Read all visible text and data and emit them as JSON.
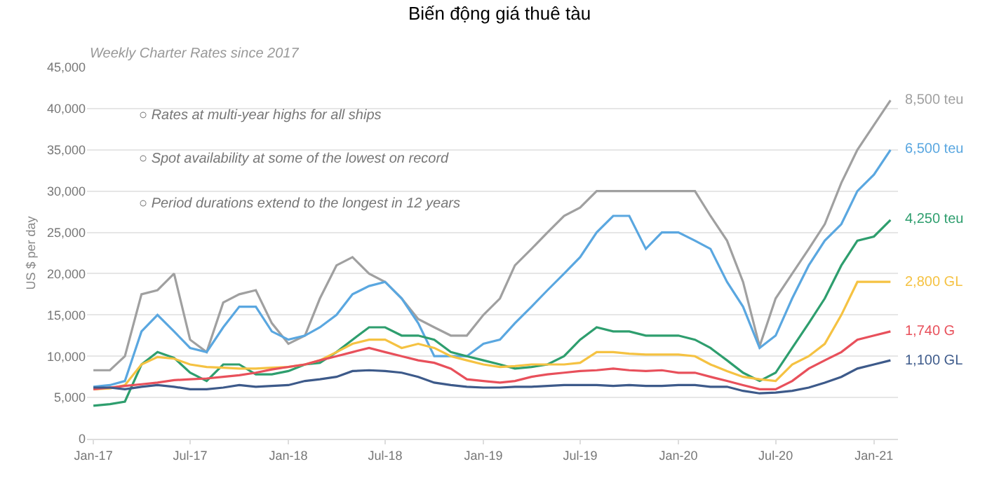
{
  "chart_data": {
    "type": "line",
    "title": "Biến động giá thuê tàu",
    "subtitle": "Weekly Charter Rates since 2017",
    "ylabel": "US $ per day",
    "annotations": [
      "○ Rates at multi-year highs for all ships",
      "○ Spot availability at some of the lowest on record",
      "○ Period durations extend to the longest in 12 years"
    ],
    "x": [
      "2017-01",
      "2017-02",
      "2017-03",
      "2017-04",
      "2017-05",
      "2017-06",
      "2017-07",
      "2017-08",
      "2017-09",
      "2017-10",
      "2017-11",
      "2017-12",
      "2018-01",
      "2018-02",
      "2018-03",
      "2018-04",
      "2018-05",
      "2018-06",
      "2018-07",
      "2018-08",
      "2018-09",
      "2018-10",
      "2018-11",
      "2018-12",
      "2019-01",
      "2019-02",
      "2019-03",
      "2019-04",
      "2019-05",
      "2019-06",
      "2019-07",
      "2019-08",
      "2019-09",
      "2019-10",
      "2019-11",
      "2019-12",
      "2020-01",
      "2020-02",
      "2020-03",
      "2020-04",
      "2020-05",
      "2020-06",
      "2020-07",
      "2020-08",
      "2020-09",
      "2020-10",
      "2020-11",
      "2020-12",
      "2021-01",
      "2021-02"
    ],
    "series": [
      {
        "name": "8,500 teu",
        "color": "#a0a0a0",
        "values": [
          8300,
          8300,
          10000,
          17500,
          18000,
          20000,
          12000,
          10500,
          16500,
          17500,
          18000,
          14000,
          11500,
          12500,
          17000,
          21000,
          22000,
          20000,
          19000,
          17000,
          14500,
          13500,
          12500,
          12500,
          15000,
          17000,
          21000,
          23000,
          25000,
          27000,
          28000,
          30000,
          30000,
          30000,
          30000,
          30000,
          30000,
          30000,
          27000,
          24000,
          19000,
          11200,
          17000,
          20000,
          23000,
          26000,
          31000,
          35000,
          38000,
          41000
        ]
      },
      {
        "name": "6,500 teu",
        "color": "#5aa7e0",
        "values": [
          6300,
          6500,
          7000,
          13000,
          15000,
          13000,
          11000,
          10500,
          13500,
          16000,
          16000,
          13000,
          12000,
          12500,
          13500,
          15000,
          17500,
          18500,
          19000,
          17000,
          14000,
          10000,
          10000,
          10000,
          11500,
          12000,
          14000,
          16000,
          18000,
          20000,
          22000,
          25000,
          27000,
          27000,
          23000,
          25000,
          25000,
          24000,
          23000,
          19000,
          16000,
          11000,
          12500,
          17000,
          21000,
          24000,
          26000,
          30000,
          32000,
          35000
        ]
      },
      {
        "name": "4,250 teu",
        "color": "#2e9e6e",
        "values": [
          4000,
          4200,
          4500,
          9000,
          10500,
          9800,
          8000,
          7000,
          9000,
          9000,
          7800,
          7800,
          8200,
          9000,
          9200,
          10500,
          12000,
          13500,
          13500,
          12500,
          12500,
          12000,
          10500,
          10000,
          9500,
          9000,
          8500,
          8700,
          9000,
          10000,
          12000,
          13500,
          13000,
          13000,
          12500,
          12500,
          12500,
          12000,
          11000,
          9500,
          8000,
          7000,
          8000,
          11000,
          14000,
          17000,
          21000,
          24000,
          24500,
          26500
        ]
      },
      {
        "name": "2,800 GL",
        "color": "#f5c242",
        "values": [
          6000,
          6100,
          6500,
          9000,
          9900,
          9700,
          9000,
          8700,
          8600,
          8500,
          8500,
          8600,
          8700,
          9000,
          9500,
          10500,
          11500,
          12000,
          12000,
          11000,
          11500,
          11000,
          10000,
          9500,
          9000,
          8700,
          8800,
          9000,
          9000,
          9000,
          9200,
          10500,
          10500,
          10300,
          10200,
          10200,
          10200,
          10000,
          9000,
          8200,
          7500,
          7200,
          7000,
          9000,
          10000,
          11500,
          15000,
          19000,
          19000,
          19000
        ]
      },
      {
        "name": "1,740 G",
        "color": "#e8505b",
        "values": [
          6000,
          6200,
          6400,
          6600,
          6800,
          7100,
          7200,
          7300,
          7500,
          7700,
          8000,
          8400,
          8700,
          9000,
          9500,
          10000,
          10500,
          11000,
          10500,
          10000,
          9500,
          9200,
          8500,
          7200,
          7000,
          6800,
          7000,
          7500,
          7800,
          8000,
          8200,
          8300,
          8500,
          8300,
          8200,
          8300,
          8000,
          8000,
          7500,
          7000,
          6500,
          6000,
          6000,
          7000,
          8500,
          9500,
          10500,
          12000,
          12500,
          13000
        ]
      },
      {
        "name": "1,100 GL",
        "color": "#3d5a8a",
        "values": [
          6200,
          6200,
          6000,
          6300,
          6500,
          6300,
          6000,
          6000,
          6200,
          6500,
          6300,
          6400,
          6500,
          7000,
          7200,
          7500,
          8200,
          8300,
          8200,
          8000,
          7500,
          6800,
          6500,
          6300,
          6200,
          6200,
          6300,
          6300,
          6400,
          6500,
          6500,
          6500,
          6400,
          6500,
          6400,
          6400,
          6500,
          6500,
          6300,
          6300,
          5800,
          5500,
          5600,
          5800,
          6200,
          6800,
          7500,
          8500,
          9000,
          9500
        ]
      }
    ],
    "xlim": [
      "2016-12-20",
      "2021-02-15"
    ],
    "xticks": [
      {
        "value": "2017-01",
        "label": "Jan-17"
      },
      {
        "value": "2017-07",
        "label": "Jul-17"
      },
      {
        "value": "2018-01",
        "label": "Jan-18"
      },
      {
        "value": "2018-07",
        "label": "Jul-18"
      },
      {
        "value": "2019-01",
        "label": "Jan-19"
      },
      {
        "value": "2019-07",
        "label": "Jul-19"
      },
      {
        "value": "2020-01",
        "label": "Jan-20"
      },
      {
        "value": "2020-07",
        "label": "Jul-20"
      },
      {
        "value": "2021-01",
        "label": "Jan-21"
      }
    ],
    "ylim": [
      0,
      45000
    ],
    "yticks": [
      {
        "value": 0,
        "label": "0"
      },
      {
        "value": 5000,
        "label": "5,000"
      },
      {
        "value": 10000,
        "label": "10,000"
      },
      {
        "value": 15000,
        "label": "15,000"
      },
      {
        "value": 20000,
        "label": "20,000"
      },
      {
        "value": 25000,
        "label": "25,000"
      },
      {
        "value": 30000,
        "label": "30,000"
      },
      {
        "value": 35000,
        "label": "35,000"
      },
      {
        "value": 40000,
        "label": "40,000"
      },
      {
        "value": 45000,
        "label": "45,000"
      }
    ],
    "grid": "y",
    "legend": false,
    "marker": "none",
    "line_style": "solid"
  }
}
